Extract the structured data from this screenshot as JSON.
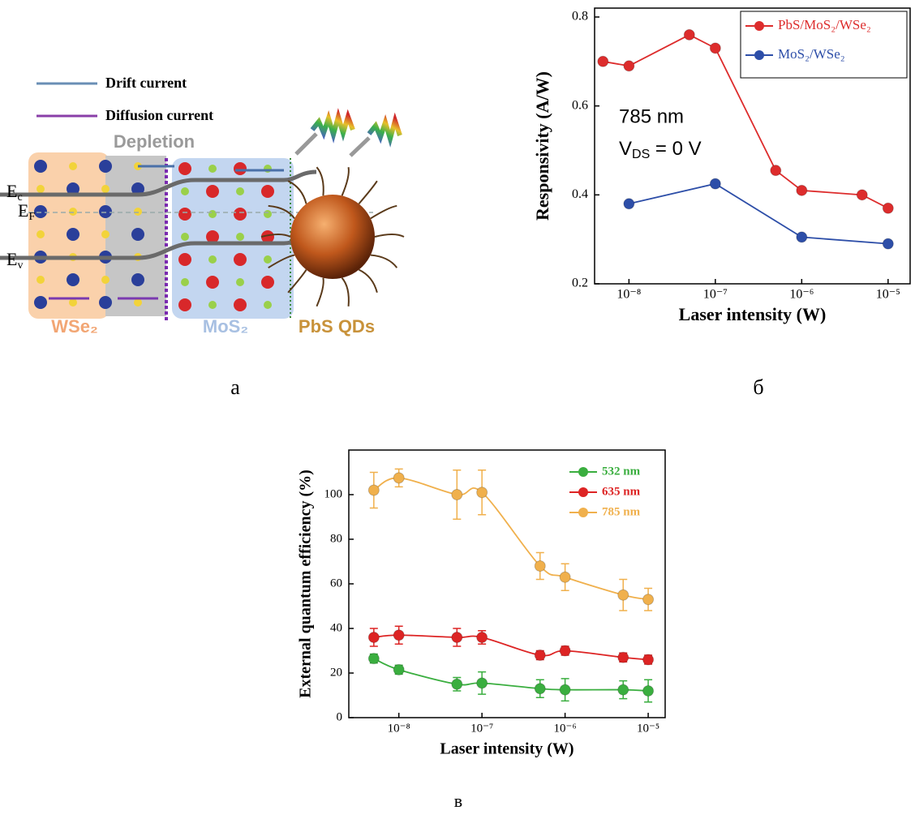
{
  "diagram": {
    "legend": [
      "Drift current",
      "Diffusion current"
    ],
    "depletion": "Depletion",
    "band_labels": [
      {
        "main": "E",
        "sub": "c"
      },
      {
        "main": "E",
        "sub": "F"
      },
      {
        "main": "E",
        "sub": "v"
      }
    ],
    "regions": [
      "WSe₂",
      "MoS₂",
      "PbS QDs"
    ]
  },
  "panel_labels": [
    "а",
    "б",
    "в"
  ],
  "chart_data": [
    {
      "type": "line",
      "xscale": "log",
      "xlabel": "Laser intensity (W)",
      "ylabel": "Responsivity (A/W)",
      "annotations": [
        "785 nm",
        "V",
        "DS",
        " = 0 V"
      ],
      "xlim": [
        4e-09,
        1.8e-05
      ],
      "ylim": [
        0.2,
        0.82
      ],
      "xticks": [
        {
          "value": 1e-08,
          "label": "10⁻⁸"
        },
        {
          "value": 1e-07,
          "label": "10⁻⁷"
        },
        {
          "value": 1e-06,
          "label": "10⁻⁶"
        },
        {
          "value": 1e-05,
          "label": "10⁻⁵"
        }
      ],
      "yticks": [
        0.2,
        0.4,
        0.6,
        0.8
      ],
      "legend": "upper right",
      "legend_box": true,
      "smooth": false,
      "series": [
        {
          "name": "PbS/MoS₂/WSe₂",
          "color": "#dd2c2c",
          "x": [
            5e-09,
            1e-08,
            5e-08,
            1e-07,
            5e-07,
            1e-06,
            5e-06,
            1e-05
          ],
          "values": [
            0.7,
            0.69,
            0.76,
            0.73,
            0.455,
            0.41,
            0.4,
            0.37
          ]
        },
        {
          "name": "MoS₂/WSe₂",
          "color": "#2d4ea8",
          "x": [
            1e-08,
            1e-07,
            1e-06,
            1e-05
          ],
          "values": [
            0.38,
            0.425,
            0.305,
            0.29
          ]
        }
      ]
    },
    {
      "type": "line",
      "xscale": "log",
      "xlabel": "Laser intensity (W)",
      "ylabel": "External quantum efficiency (%)",
      "xlim": [
        2.5e-09,
        1.6e-05
      ],
      "ylim": [
        0,
        120
      ],
      "xticks": [
        {
          "value": 1e-08,
          "label": "10⁻⁸"
        },
        {
          "value": 1e-07,
          "label": "10⁻⁷"
        },
        {
          "value": 1e-06,
          "label": "10⁻⁶"
        },
        {
          "value": 1e-05,
          "label": "10⁻⁵"
        }
      ],
      "yticks": [
        0,
        20,
        40,
        60,
        80,
        100
      ],
      "legend": "upper right",
      "legend_box": false,
      "smooth": true,
      "series": [
        {
          "name": "532 nm",
          "color": "#3aae3f",
          "x": [
            5e-09,
            1e-08,
            5e-08,
            1e-07,
            5e-07,
            1e-06,
            5e-06,
            1e-05
          ],
          "values": [
            26.5,
            21.5,
            15,
            15.5,
            13,
            12.5,
            12.5,
            12
          ],
          "errors": [
            2,
            2,
            3,
            5,
            4,
            5,
            4,
            5
          ]
        },
        {
          "name": "635 nm",
          "color": "#dd2424",
          "x": [
            5e-09,
            1e-08,
            5e-08,
            1e-07,
            5e-07,
            1e-06,
            5e-06,
            1e-05
          ],
          "values": [
            36,
            37,
            36,
            36,
            28,
            30,
            27,
            26
          ],
          "errors": [
            4,
            4,
            4,
            3,
            2,
            2,
            2,
            2
          ]
        },
        {
          "name": "785 nm",
          "color": "#f0b04c",
          "x": [
            5e-09,
            1e-08,
            5e-08,
            1e-07,
            5e-07,
            1e-06,
            5e-06,
            1e-05
          ],
          "values": [
            102,
            107.5,
            100,
            101,
            68,
            63,
            55,
            53
          ],
          "errors": [
            8,
            4,
            11,
            10,
            6,
            6,
            7,
            5
          ]
        }
      ]
    }
  ]
}
